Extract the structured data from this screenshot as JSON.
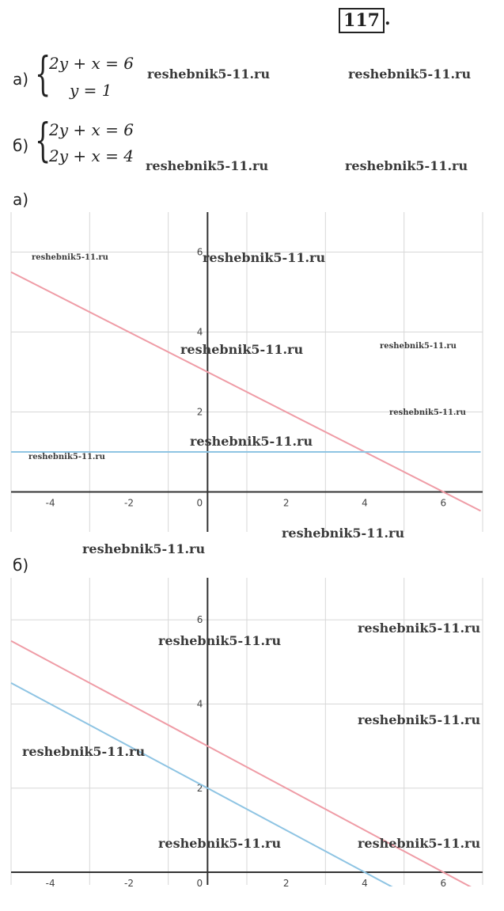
{
  "header": {
    "exercise_number": "117",
    "dot": "."
  },
  "systems": [
    {
      "label": "а)",
      "equations": [
        "2y + x = 6",
        "y = 1"
      ]
    },
    {
      "label": "б)",
      "equations": [
        "2y + x = 6",
        "2y + x = 4"
      ]
    }
  ],
  "watermark": "reshebnik5-11.ru",
  "colors": {
    "red_line": "#ef9ca6",
    "blue_line": "#8ec4e3",
    "grid": "#d7d7d7",
    "axis": "#333333"
  },
  "chart_data": [
    {
      "label": "а)",
      "type": "line",
      "xlim": [
        -5,
        7
      ],
      "ylim": [
        -1,
        7
      ],
      "x_ticks": [
        "-4",
        "-2",
        "0",
        "2",
        "4",
        "6"
      ],
      "y_ticks": [
        "2",
        "4",
        "6"
      ],
      "grid": true,
      "series": [
        {
          "equation": "2y + x = 6",
          "color": "#ef9ca6",
          "slope": -0.5,
          "intercept": 3
        },
        {
          "equation": "y = 1",
          "color": "#8ec4e3",
          "slope": 0,
          "intercept": 1
        }
      ]
    },
    {
      "label": "б)",
      "type": "line",
      "xlim": [
        -5,
        7
      ],
      "ylim": [
        -0.3,
        7
      ],
      "x_ticks": [
        "-4",
        "-2",
        "0",
        "2",
        "4",
        "6"
      ],
      "y_ticks": [
        "2",
        "4",
        "6"
      ],
      "grid": true,
      "series": [
        {
          "equation": "2y + x = 6",
          "color": "#ef9ca6",
          "slope": -0.5,
          "intercept": 3
        },
        {
          "equation": "2y + x = 4",
          "color": "#8ec4e3",
          "slope": -0.5,
          "intercept": 2
        }
      ]
    }
  ]
}
